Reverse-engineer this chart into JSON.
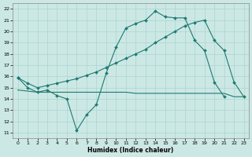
{
  "xlabel": "Humidex (Indice chaleur)",
  "xlim": [
    -0.5,
    23.5
  ],
  "ylim": [
    10.5,
    22.5
  ],
  "yticks": [
    11,
    12,
    13,
    14,
    15,
    16,
    17,
    18,
    19,
    20,
    21,
    22
  ],
  "xticks": [
    0,
    1,
    2,
    3,
    4,
    5,
    6,
    7,
    8,
    9,
    10,
    11,
    12,
    13,
    14,
    15,
    16,
    17,
    18,
    19,
    20,
    21,
    22,
    23
  ],
  "bg_color": "#cce8e5",
  "grid_color": "#aad4cf",
  "line_color": "#1e7a72",
  "line1_x": [
    0,
    1,
    2,
    3,
    4,
    5,
    6,
    7,
    8,
    9,
    10,
    11,
    12,
    13,
    14,
    15,
    16,
    17,
    18,
    19,
    20,
    21
  ],
  "line1_y": [
    15.9,
    15.0,
    14.6,
    14.8,
    14.3,
    14.0,
    11.2,
    12.6,
    13.5,
    16.3,
    18.6,
    20.3,
    20.7,
    21.0,
    21.8,
    21.3,
    21.2,
    21.2,
    19.2,
    18.3,
    15.5,
    14.2
  ],
  "line2_x": [
    0,
    1,
    2,
    3,
    4,
    5,
    6,
    7,
    8,
    9,
    10,
    11,
    12,
    13,
    14,
    15,
    16,
    17,
    18,
    19,
    20,
    21,
    22,
    23
  ],
  "line2_y": [
    14.8,
    14.7,
    14.6,
    14.6,
    14.6,
    14.6,
    14.6,
    14.6,
    14.6,
    14.6,
    14.6,
    14.6,
    14.5,
    14.5,
    14.5,
    14.5,
    14.5,
    14.5,
    14.5,
    14.5,
    14.5,
    14.5,
    14.2,
    14.2
  ],
  "line3_x": [
    0,
    1,
    2,
    3,
    4,
    5,
    6,
    7,
    8,
    9,
    10,
    11,
    12,
    13,
    14,
    15,
    16,
    17,
    18,
    19,
    20,
    21,
    22,
    23
  ],
  "line3_y": [
    15.9,
    15.4,
    15.0,
    15.2,
    15.4,
    15.6,
    15.8,
    16.1,
    16.4,
    16.8,
    17.2,
    17.6,
    18.0,
    18.4,
    19.0,
    19.5,
    20.0,
    20.5,
    20.8,
    21.0,
    19.2,
    18.3,
    15.5,
    14.2
  ]
}
